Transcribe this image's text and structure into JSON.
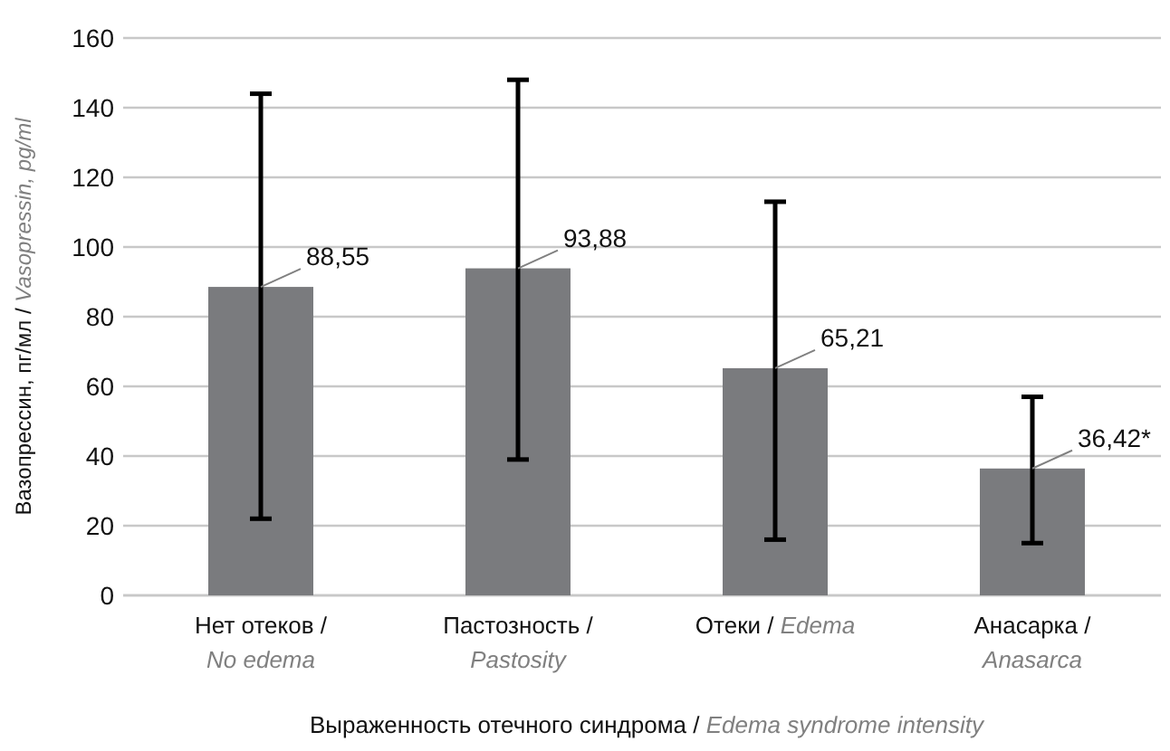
{
  "chart_data": {
    "type": "bar",
    "xlabel": "Выраженность отечного синдрома / Edema syndrome intensity",
    "ylabel": "Вазопрессин, пг/мл / Vasopressin, pg/ml",
    "categories": [
      "Нет отеков / No edema",
      "Пастозность / Pastosity",
      "Отеки / Edema",
      "Анасарка / Anasarca"
    ],
    "values": [
      88.55,
      93.88,
      65.21,
      36.42
    ],
    "value_labels": [
      "88,55",
      "93,88",
      "65,21",
      "36,42*"
    ],
    "errors": [
      [
        22,
        144
      ],
      [
        39,
        148
      ],
      [
        16,
        113
      ],
      [
        15,
        57
      ]
    ],
    "color": "#7a7b7e",
    "ylim": [
      0,
      160
    ],
    "yticks": [
      0,
      20,
      40,
      60,
      80,
      100,
      120,
      140,
      160
    ],
    "grid": "y"
  }
}
